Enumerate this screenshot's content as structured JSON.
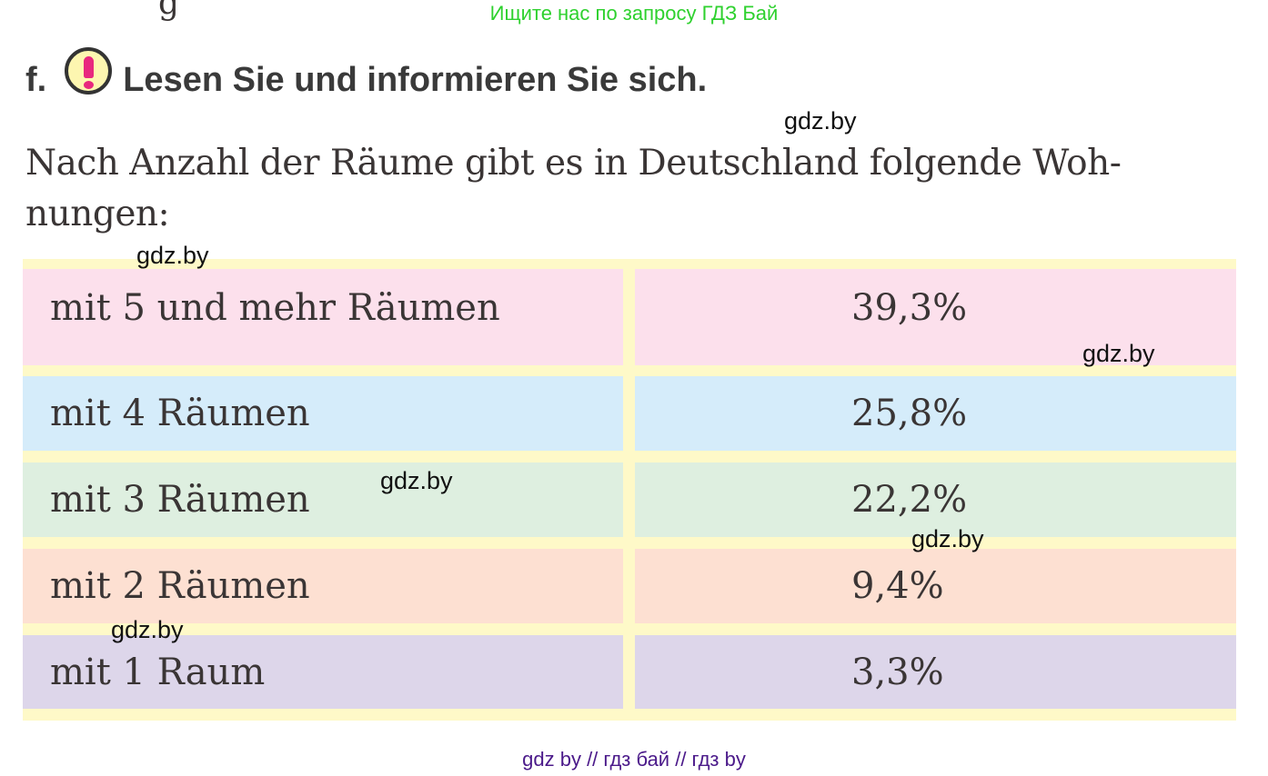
{
  "top_banner": "Ищите нас по запросу ГДЗ Бай",
  "prev_fragment": "g",
  "heading": {
    "letter": "f.",
    "icon": "exclamation-icon",
    "title": "Lesen Sie und informieren Sie sich."
  },
  "intro": "Nach Anzahl der Räume gibt es in Deutschland folgende Woh-nungen:",
  "rows": [
    {
      "label": "mit 5 und mehr Räumen",
      "value": "39,3%",
      "color": "#fce0ec"
    },
    {
      "label": "mit 4 Räumen",
      "value": "25,8%",
      "color": "#d5ecfa"
    },
    {
      "label": "mit 3 Räumen",
      "value": "22,2%",
      "color": "#deefe0"
    },
    {
      "label": "mit 2 Räumen",
      "value": "9,4%",
      "color": "#fde0d2"
    },
    {
      "label": "mit 1 Raum",
      "value": "3,3%",
      "color": "#ddd6ea"
    }
  ],
  "watermark": "gdz.by",
  "footer": "gdz by  //  гдз бай  //  гдз by"
}
